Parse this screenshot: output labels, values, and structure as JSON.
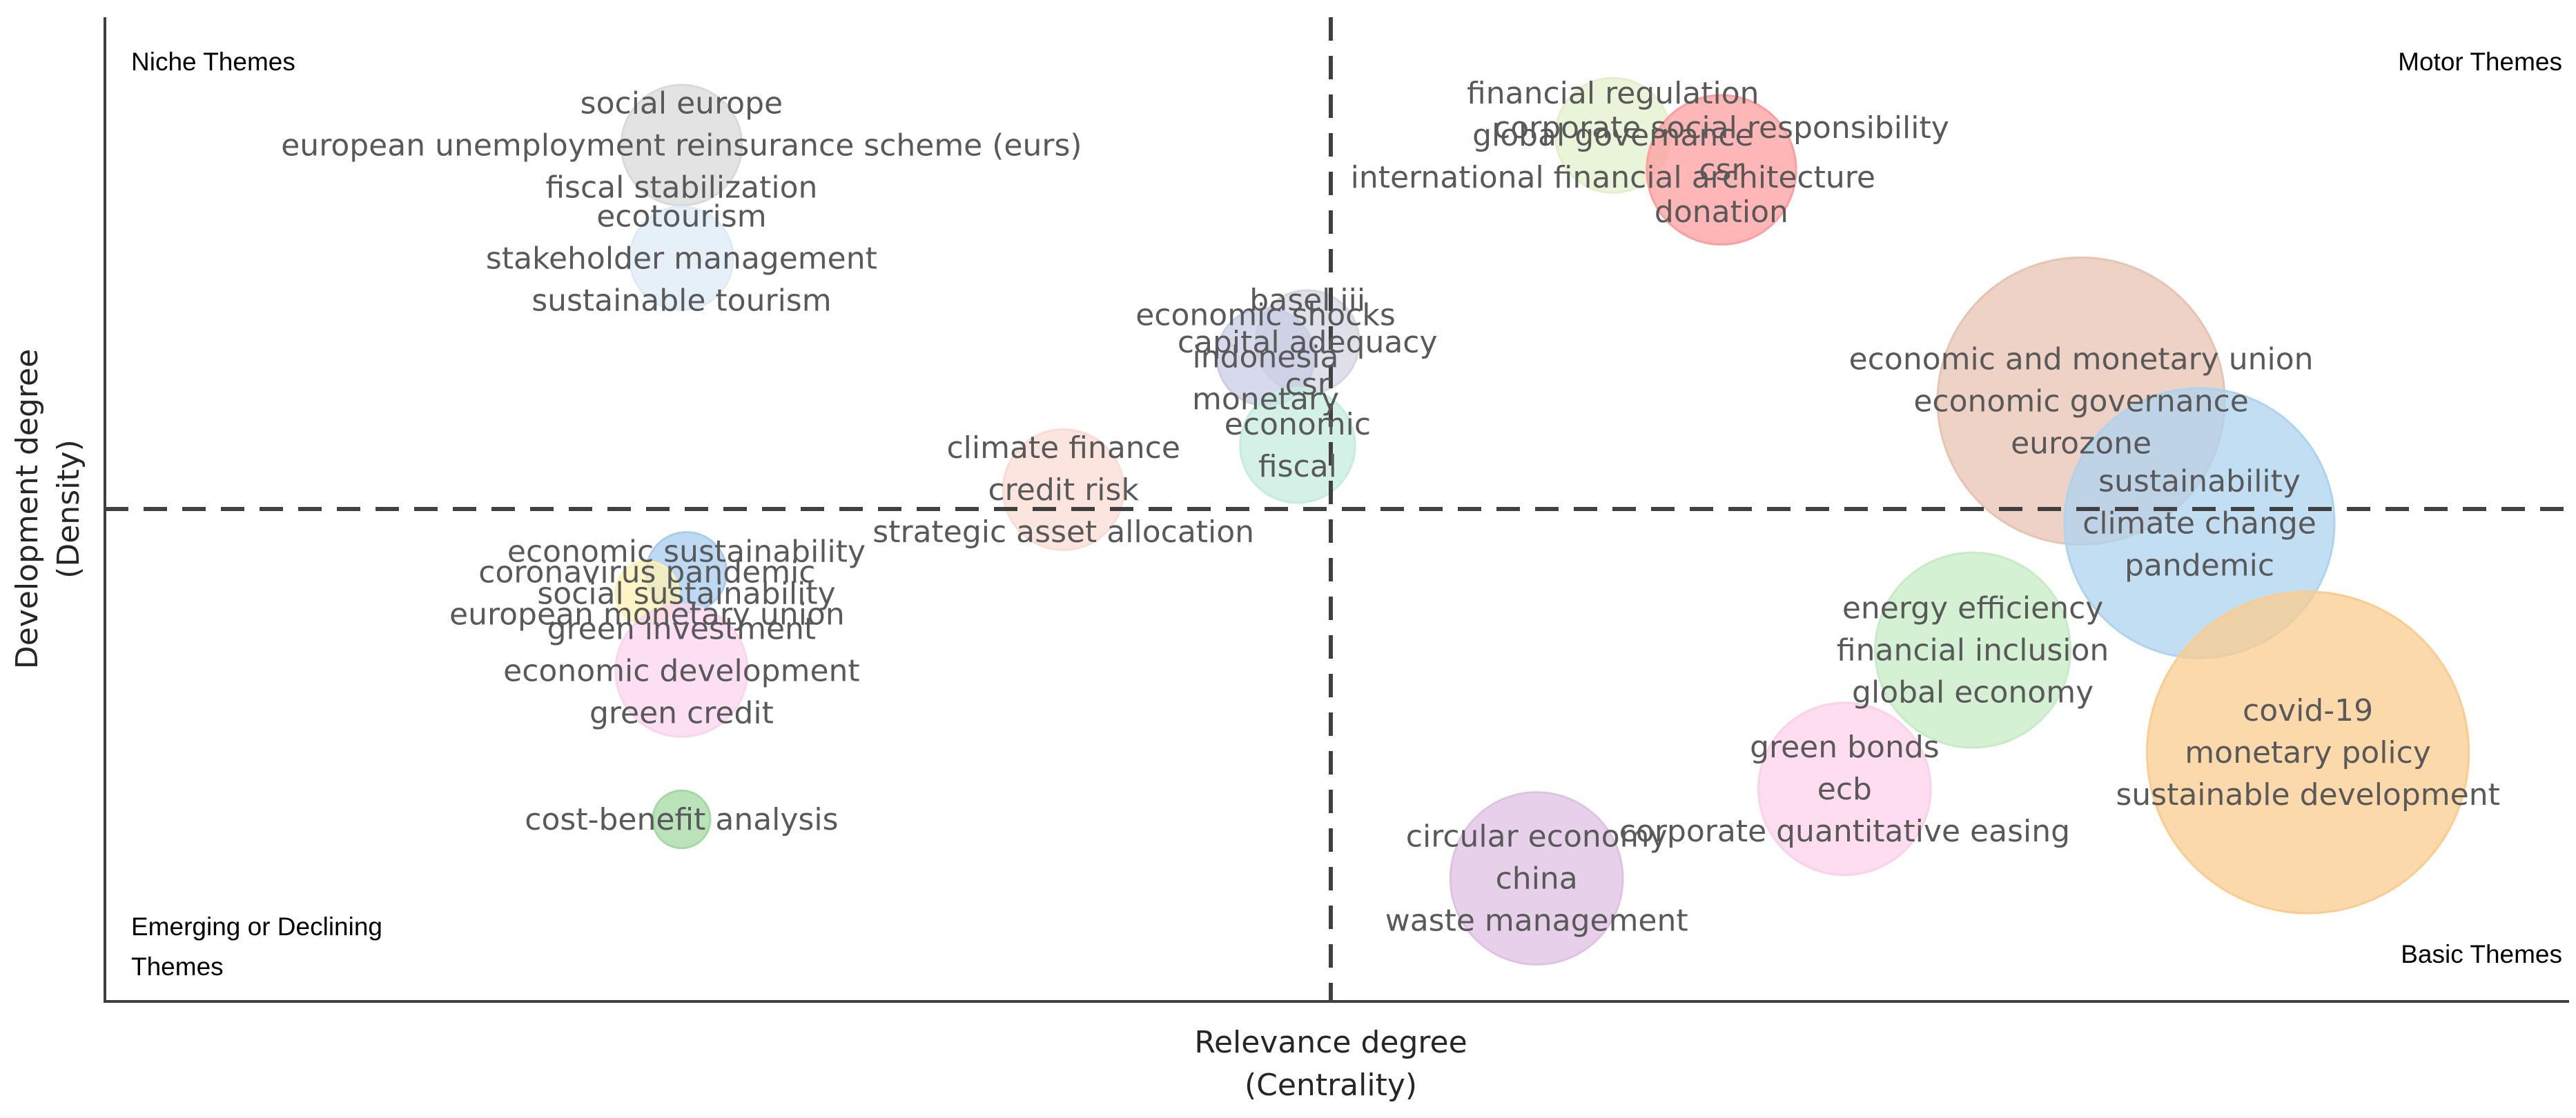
{
  "chart_data": {
    "type": "scatter",
    "subtype": "thematic-map-bubble",
    "title": "",
    "xlabel": "Relevance degree",
    "xlabel_sub": "(Centrality)",
    "ylabel": "Development degree",
    "ylabel_sub": "(Density)",
    "grid": false,
    "divider_lines": "dashed, vertical at center and horizontal at center",
    "quadrants": {
      "top_left": "Niche Themes",
      "top_right": "Motor Themes",
      "bottom_left": [
        "Emerging or Declining",
        "Themes"
      ],
      "bottom_right": "Basic Themes"
    },
    "clusters": [
      {
        "x": 0.234,
        "y": 0.87,
        "size": 0.42,
        "color": "#d9d9d9",
        "labels": [
          "social europe",
          "european unemployment reinsurance scheme (eurs)",
          "fiscal stabilization"
        ]
      },
      {
        "x": 0.234,
        "y": 0.755,
        "size": 0.36,
        "color": "#ddebf7",
        "labels": [
          "ecotourism",
          "stakeholder management",
          "sustainable tourism"
        ]
      },
      {
        "x": 0.488,
        "y": 0.67,
        "size": 0.36,
        "color": "#d6d6e3",
        "labels": [
          "basel iii",
          "capital adequacy",
          "csr"
        ]
      },
      {
        "x": 0.471,
        "y": 0.655,
        "size": 0.34,
        "color": "#c9cde6",
        "labels": [
          "economic shocks",
          "indonesia",
          "monetary"
        ]
      },
      {
        "x": 0.484,
        "y": 0.565,
        "size": 0.4,
        "color": "#c6ecdf",
        "labels": [
          "economic",
          "fiscal"
        ]
      },
      {
        "x": 0.389,
        "y": 0.52,
        "size": 0.42,
        "color": "#fbdcd3",
        "labels": [
          "climate finance",
          "credit risk",
          "strategic asset allocation"
        ]
      },
      {
        "x": 0.612,
        "y": 0.88,
        "size": 0.4,
        "color": "#e2f0cb",
        "labels": [
          "financial regulation",
          "global governance",
          "international financial architecture"
        ]
      },
      {
        "x": 0.656,
        "y": 0.845,
        "size": 0.52,
        "color": "#ff9e9e",
        "labels": [
          "corporate social responsibility",
          "csr",
          "donation"
        ]
      },
      {
        "x": 0.802,
        "y": 0.61,
        "size": 1.0,
        "color": "#e7c3b1",
        "labels": [
          "economic and monetary union",
          "economic governance",
          "eurozone"
        ]
      },
      {
        "x": 0.85,
        "y": 0.486,
        "size": 0.94,
        "color": "#aed3ef",
        "labels": [
          "sustainability",
          "climate change",
          "pandemic"
        ]
      },
      {
        "x": 0.758,
        "y": 0.357,
        "size": 0.68,
        "color": "#c5ecc5",
        "labels": [
          "energy efficiency",
          "financial inclusion",
          "global economy"
        ]
      },
      {
        "x": 0.706,
        "y": 0.216,
        "size": 0.6,
        "color": "#fcd1ea",
        "labels": [
          "green bonds",
          "ecb",
          "corporate quantitative easing"
        ]
      },
      {
        "x": 0.581,
        "y": 0.125,
        "size": 0.6,
        "color": "#dfc2e3",
        "labels": [
          "circular economy",
          "china",
          "waste management"
        ]
      },
      {
        "x": 0.894,
        "y": 0.253,
        "size": 1.12,
        "color": "#fbcc8d",
        "labels": [
          "covid-19",
          "monetary policy",
          "sustainable development"
        ]
      },
      {
        "x": 0.236,
        "y": 0.436,
        "size": 0.28,
        "color": "#a8cdee",
        "labels": [
          "economic sustainability",
          "social sustainability"
        ]
      },
      {
        "x": 0.22,
        "y": 0.415,
        "size": 0.22,
        "color": "#fff0b3",
        "labels": [
          "coronavirus pandemic",
          "european monetary union"
        ]
      },
      {
        "x": 0.234,
        "y": 0.336,
        "size": 0.46,
        "color": "#fbd4ef",
        "labels": [
          "green investment",
          "economic development",
          "green credit"
        ]
      },
      {
        "x": 0.234,
        "y": 0.185,
        "size": 0.2,
        "color": "#a3d9a3",
        "labels": [
          "cost-benefit analysis"
        ]
      }
    ]
  }
}
